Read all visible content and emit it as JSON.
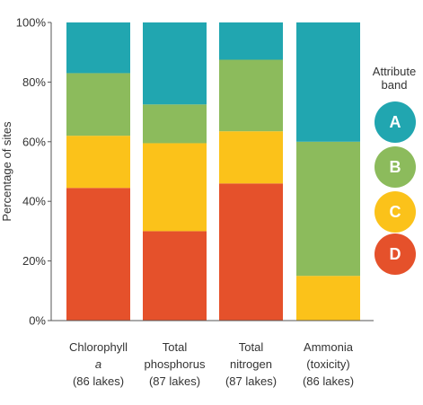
{
  "chart_data": {
    "type": "bar",
    "stacked": true,
    "ylabel": "Percentage of sites",
    "ylim": [
      0,
      100
    ],
    "yticks": [
      "0%",
      "20%",
      "40%",
      "60%",
      "80%",
      "100%"
    ],
    "categories": [
      [
        "Chlorophyll",
        "a",
        "(86 lakes)"
      ],
      [
        "Total",
        "phosphorus",
        "(87 lakes)"
      ],
      [
        "Total",
        "nitrogen",
        "(87 lakes)"
      ],
      [
        "Ammonia",
        "(toxicity)",
        "(86 lakes)"
      ]
    ],
    "series": [
      {
        "name": "D",
        "color": "#e5512b",
        "values": [
          44.5,
          30,
          46,
          0
        ]
      },
      {
        "name": "C",
        "color": "#fbc21a",
        "values": [
          17.5,
          29.5,
          17.5,
          15
        ]
      },
      {
        "name": "B",
        "color": "#8cbb5c",
        "values": [
          21,
          13,
          24,
          45
        ]
      },
      {
        "name": "A",
        "color": "#21a6b0",
        "values": [
          17,
          27.5,
          12.5,
          40
        ]
      }
    ],
    "legend": {
      "title": [
        "Attribute",
        "band"
      ],
      "placement": "right",
      "items": [
        "A",
        "B",
        "C",
        "D"
      ]
    },
    "grid": false
  }
}
